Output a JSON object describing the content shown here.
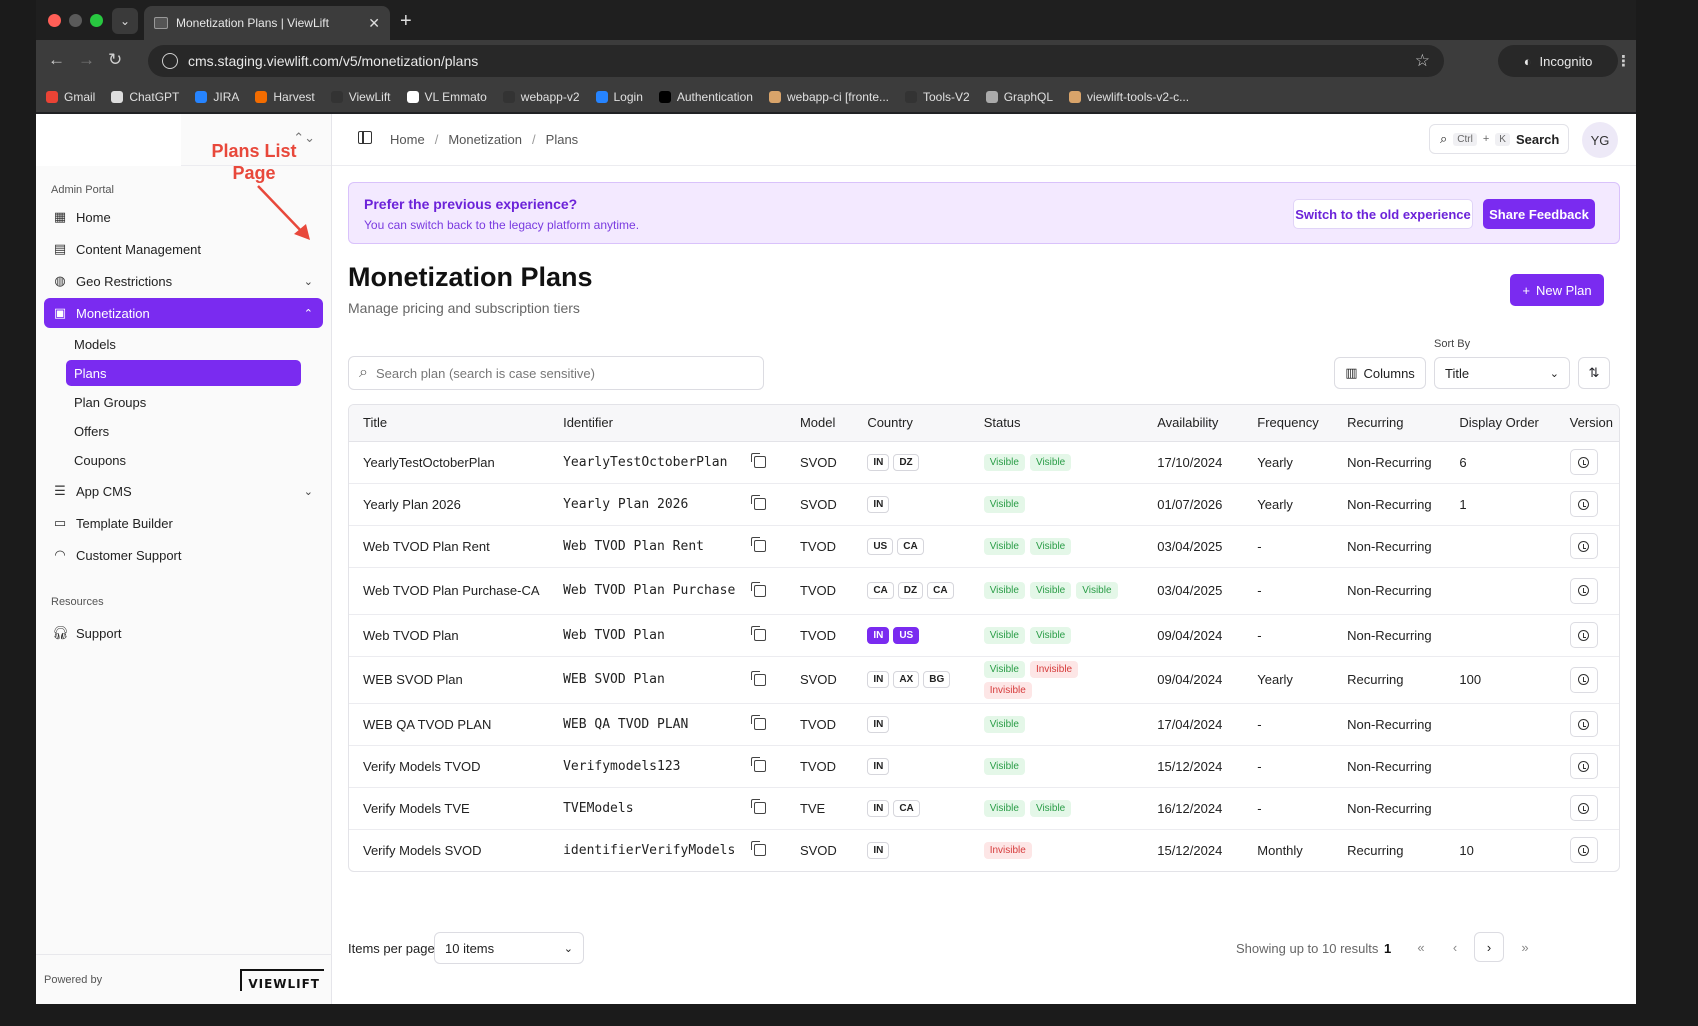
{
  "browser": {
    "tab_title": "Monetization Plans | ViewLift",
    "url": "cms.staging.viewlift.com/v5/monetization/plans",
    "incognito_label": "Incognito",
    "bookmarks": [
      {
        "label": "Gmail",
        "color": "#ea4335"
      },
      {
        "label": "ChatGPT",
        "color": "#dddddd"
      },
      {
        "label": "JIRA",
        "color": "#2684ff"
      },
      {
        "label": "Harvest",
        "color": "#f36c00"
      },
      {
        "label": "ViewLift",
        "color": "#333333"
      },
      {
        "label": "VL Emmato",
        "color": "#ffffff"
      },
      {
        "label": "webapp-v2",
        "color": "#333333"
      },
      {
        "label": "Login",
        "color": "#2684ff"
      },
      {
        "label": "Authentication",
        "color": "#000000"
      },
      {
        "label": "webapp-ci [fronte...",
        "color": "#d9a46a"
      },
      {
        "label": "Tools-V2",
        "color": "#333333"
      },
      {
        "label": "GraphQL",
        "color": "#aaaaaa"
      },
      {
        "label": "viewlift-tools-v2-c...",
        "color": "#d9a46a"
      }
    ]
  },
  "annotation": "Plans List Page",
  "sidebar": {
    "section_admin": "Admin Portal",
    "items": [
      {
        "label": "Home",
        "icon": "grid-icon"
      },
      {
        "label": "Content Management",
        "icon": "film-icon"
      },
      {
        "label": "Geo Restrictions",
        "icon": "globe-icon"
      },
      {
        "label": "Monetization",
        "icon": "wallet-icon"
      }
    ],
    "monetization_sub": [
      "Models",
      "Plans",
      "Plan Groups",
      "Offers",
      "Coupons"
    ],
    "items_after": [
      {
        "label": "App CMS",
        "icon": "sliders-icon"
      },
      {
        "label": "Template Builder",
        "icon": "layout-icon"
      },
      {
        "label": "Customer Support",
        "icon": "headset-icon"
      }
    ],
    "section_resources": "Resources",
    "support_label": "Support",
    "powered_by": "Powered by",
    "logo_text": "VIEWLIFT"
  },
  "topbar": {
    "breadcrumb": [
      "Home",
      "Monetization",
      "Plans"
    ],
    "search_label": "Search",
    "kbd_ctrl": "Ctrl",
    "kbd_plus": "+",
    "kbd_k": "K",
    "avatar": "YG"
  },
  "banner": {
    "title": "Prefer the previous experience?",
    "subtitle": "You can switch back to the legacy platform anytime.",
    "switch_label": "Switch to the old experience",
    "feedback_label": "Share Feedback"
  },
  "page": {
    "title": "Monetization Plans",
    "subtitle": "Manage pricing and subscription tiers",
    "new_plan_label": "New Plan",
    "search_placeholder": "Search plan (search is case sensitive)",
    "columns_label": "Columns",
    "sort_by_label": "Sort By",
    "sort_value": "Title"
  },
  "table": {
    "columns": [
      "Title",
      "Identifier",
      "Model",
      "Country",
      "Status",
      "Availability",
      "Frequency",
      "Recurring",
      "Display Order",
      "Version"
    ],
    "rows": [
      {
        "title": "YearlyTestOctoberPlan",
        "identifier": "YearlyTestOctoberPlan",
        "model": "SVOD",
        "countries": [
          "IN",
          "DZ"
        ],
        "selected_countries": [],
        "status": [
          "Visible",
          "Visible"
        ],
        "availability": "17/10/2024",
        "frequency": "Yearly",
        "recurring": "Non-Recurring",
        "display_order": "6"
      },
      {
        "title": "Yearly Plan 2026",
        "identifier": "Yearly Plan 2026",
        "model": "SVOD",
        "countries": [
          "IN"
        ],
        "selected_countries": [],
        "status": [
          "Visible"
        ],
        "availability": "01/07/2026",
        "frequency": "Yearly",
        "recurring": "Non-Recurring",
        "display_order": "1"
      },
      {
        "title": "Web TVOD Plan Rent",
        "identifier": "Web TVOD Plan Rent",
        "model": "TVOD",
        "countries": [
          "US",
          "CA"
        ],
        "selected_countries": [],
        "status": [
          "Visible",
          "Visible"
        ],
        "availability": "03/04/2025",
        "frequency": "-",
        "recurring": "Non-Recurring",
        "display_order": ""
      },
      {
        "title": "Web TVOD Plan Purchase-CA",
        "identifier": "Web TVOD Plan Purchase",
        "model": "TVOD",
        "countries": [
          "CA",
          "DZ",
          "CA"
        ],
        "selected_countries": [],
        "status": [
          "Visible",
          "Visible",
          "Visible"
        ],
        "availability": "03/04/2025",
        "frequency": "-",
        "recurring": "Non-Recurring",
        "display_order": ""
      },
      {
        "title": "Web TVOD Plan",
        "identifier": "Web TVOD Plan",
        "model": "TVOD",
        "countries": [
          "IN",
          "US"
        ],
        "selected_countries": [
          "IN",
          "US"
        ],
        "status": [
          "Visible",
          "Visible"
        ],
        "availability": "09/04/2024",
        "frequency": "-",
        "recurring": "Non-Recurring",
        "display_order": ""
      },
      {
        "title": "WEB SVOD Plan",
        "identifier": "WEB SVOD Plan",
        "model": "SVOD",
        "countries": [
          "IN",
          "AX",
          "BG"
        ],
        "selected_countries": [],
        "status": [
          "Visible",
          "Invisible",
          "Invisible"
        ],
        "availability": "09/04/2024",
        "frequency": "Yearly",
        "recurring": "Recurring",
        "display_order": "100"
      },
      {
        "title": "WEB QA TVOD PLAN",
        "identifier": "WEB QA TVOD PLAN",
        "model": "TVOD",
        "countries": [
          "IN"
        ],
        "selected_countries": [],
        "status": [
          "Visible"
        ],
        "availability": "17/04/2024",
        "frequency": "-",
        "recurring": "Non-Recurring",
        "display_order": ""
      },
      {
        "title": "Verify Models TVOD",
        "identifier": "Verifymodels123",
        "model": "TVOD",
        "countries": [
          "IN"
        ],
        "selected_countries": [],
        "status": [
          "Visible"
        ],
        "availability": "15/12/2024",
        "frequency": "-",
        "recurring": "Non-Recurring",
        "display_order": ""
      },
      {
        "title": "Verify Models TVE",
        "identifier": "TVEModels",
        "model": "TVE",
        "countries": [
          "IN",
          "CA"
        ],
        "selected_countries": [],
        "status": [
          "Visible",
          "Visible"
        ],
        "availability": "16/12/2024",
        "frequency": "-",
        "recurring": "Non-Recurring",
        "display_order": ""
      },
      {
        "title": "Verify Models SVOD",
        "identifier": "identifierVerifyModels",
        "model": "SVOD",
        "countries": [
          "IN"
        ],
        "selected_countries": [],
        "status": [
          "Invisible"
        ],
        "availability": "15/12/2024",
        "frequency": "Monthly",
        "recurring": "Recurring",
        "display_order": "10"
      }
    ]
  },
  "pagination": {
    "items_per_page_label": "Items per page",
    "items_per_page_value": "10 items",
    "showing_text": "Showing up to 10 results",
    "current_page": "1"
  },
  "colors": {
    "accent": "#7a2bf0",
    "visible": "#2a9d47",
    "invisible": "#d63b3b",
    "annotation": "#e8483b"
  }
}
